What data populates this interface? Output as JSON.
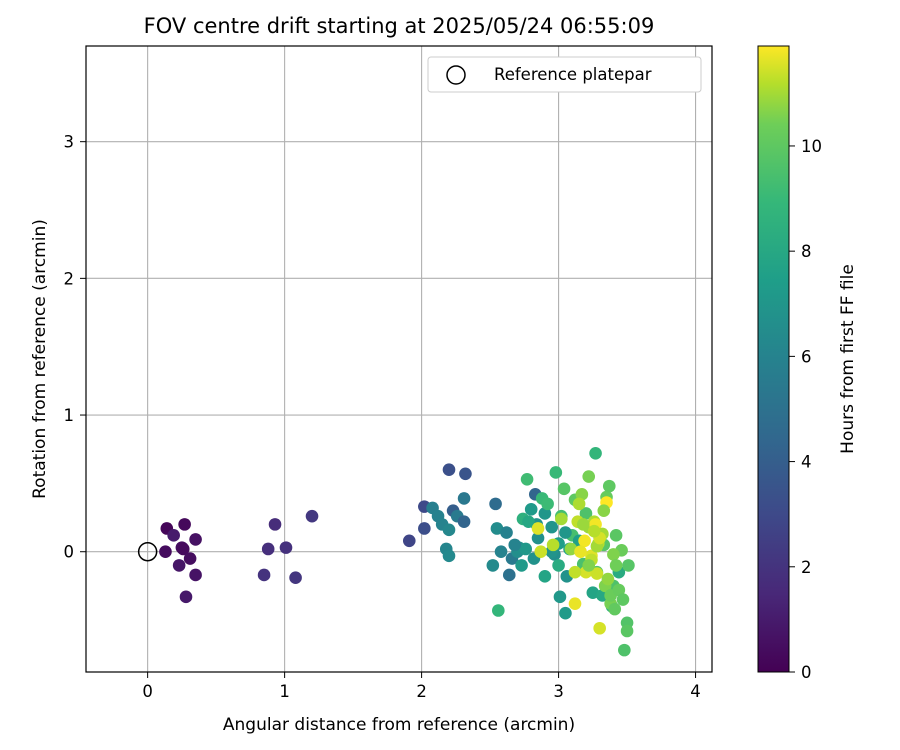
{
  "chart_data": {
    "type": "scatter",
    "title": "FOV centre drift starting at 2025/05/24 06:55:09",
    "xlabel": "Angular distance from reference (arcmin)",
    "ylabel": "Rotation from reference (arcmin)",
    "xlim": [
      -0.45,
      4.12
    ],
    "ylim": [
      -0.88,
      3.7
    ],
    "xticks": [
      0,
      1,
      2,
      3,
      4
    ],
    "yticks": [
      0,
      1,
      2,
      3
    ],
    "grid": true,
    "colormap": "viridis",
    "colorbar": {
      "label": "Hours from first FF file",
      "range": [
        0,
        11.9
      ],
      "ticks": [
        0,
        2,
        4,
        6,
        8,
        10
      ]
    },
    "legend": {
      "position": "top-right",
      "entries": [
        "Reference platepar"
      ]
    },
    "reference_point": {
      "x": 0,
      "y": 0
    },
    "series": [
      {
        "x": [
          0.14,
          0.27,
          0.13,
          0.25,
          0.35,
          0.35,
          0.23,
          0.28,
          0.19,
          0.26,
          0.31
        ],
        "y": [
          0.17,
          0.2,
          0.0,
          0.03,
          0.09,
          -0.17,
          -0.1,
          -0.33,
          0.12,
          0.02,
          -0.05
        ],
        "c": [
          0.2,
          0.3,
          0.4,
          0.5,
          0.6,
          0.7,
          0.8,
          0.9,
          1.0,
          0.35,
          0.45
        ]
      },
      {
        "x": [
          0.93,
          0.88,
          1.01,
          0.85,
          1.08,
          1.2,
          1.91
        ],
        "y": [
          0.2,
          0.02,
          0.03,
          -0.17,
          -0.19,
          0.26,
          0.08
        ],
        "c": [
          1.7,
          1.8,
          1.9,
          2.0,
          2.1,
          2.2,
          2.8
        ]
      },
      {
        "x": [
          2.02,
          2.02,
          2.08,
          2.12,
          2.15,
          2.2,
          2.23,
          2.26,
          2.31,
          2.32,
          2.2,
          2.18,
          2.2
        ],
        "y": [
          0.33,
          0.17,
          0.32,
          0.26,
          0.2,
          0.6,
          0.3,
          0.26,
          0.22,
          0.57,
          0.16,
          0.02,
          -0.03
        ],
        "c": [
          3.0,
          3.2,
          5.8,
          5.9,
          6.0,
          3.3,
          4.0,
          5.5,
          4.3,
          3.5,
          6.2,
          6.1,
          6.3
        ]
      },
      {
        "x": [
          2.31,
          2.54,
          2.52,
          2.55,
          2.58,
          2.64,
          2.66,
          2.7,
          2.71,
          2.74,
          2.77,
          2.8,
          2.83,
          2.84,
          2.88,
          2.9,
          2.92,
          2.95,
          2.97,
          2.98,
          3.0,
          3.01,
          3.02,
          3.04,
          3.05,
          3.06,
          3.08,
          3.1,
          3.12,
          3.15,
          3.18,
          3.2,
          3.22,
          3.25,
          3.27,
          3.28,
          3.3,
          3.32,
          3.33,
          3.35,
          3.37,
          3.39,
          3.4,
          3.42,
          3.44,
          3.46,
          3.48,
          3.5,
          3.51,
          3.05,
          3.0,
          2.95,
          2.9,
          2.85,
          2.82,
          2.78,
          2.76,
          2.73,
          2.68,
          2.62,
          2.56
        ],
        "y": [
          0.39,
          0.35,
          -0.1,
          0.17,
          0.0,
          -0.17,
          -0.05,
          0.0,
          0.03,
          0.24,
          0.53,
          0.31,
          0.42,
          0.2,
          0.39,
          0.28,
          0.35,
          0.18,
          -0.02,
          0.58,
          0.06,
          -0.33,
          0.26,
          0.46,
          -0.45,
          -0.18,
          0.02,
          0.12,
          0.38,
          0.08,
          -0.09,
          0.28,
          0.55,
          -0.3,
          0.72,
          -0.15,
          0.1,
          -0.32,
          0.05,
          0.4,
          0.48,
          -0.4,
          -0.25,
          0.12,
          -0.15,
          0.01,
          -0.72,
          -0.52,
          -0.1,
          0.14,
          -0.1,
          0.0,
          -0.18,
          0.1,
          -0.05,
          0.22,
          0.02,
          -0.1,
          0.05,
          0.14,
          -0.43
        ],
        "c": [
          5.4,
          4.7,
          6.4,
          6.5,
          6.0,
          5.0,
          5.5,
          6.6,
          6.7,
          8.5,
          9.2,
          7.2,
          4.3,
          6.8,
          9.0,
          7.0,
          9.1,
          6.9,
          6.6,
          9.0,
          7.4,
          7.1,
          9.3,
          9.8,
          7.3,
          6.8,
          7.6,
          9.4,
          10.0,
          7.5,
          9.5,
          9.6,
          10.5,
          7.8,
          8.8,
          9.7,
          7.0,
          8.0,
          9.8,
          10.2,
          10.0,
          8.4,
          9.6,
          9.9,
          8.2,
          10.3,
          9.6,
          9.7,
          9.8,
          7.0,
          8.2,
          6.9,
          7.8,
          6.7,
          6.8,
          8.0,
          7.1,
          7.2,
          6.0,
          5.9,
          8.8
        ]
      },
      {
        "x": [
          2.85,
          2.87,
          2.96,
          3.02,
          3.09,
          3.12,
          3.14,
          3.17,
          3.19,
          3.2,
          3.22,
          3.24,
          3.26,
          3.27,
          3.28,
          3.29,
          3.3,
          3.32,
          3.34,
          3.35,
          3.36,
          3.38,
          3.4,
          3.42,
          3.18,
          3.15,
          3.24,
          3.28,
          3.33,
          3.38,
          3.41,
          3.44,
          3.47,
          3.5,
          3.3,
          3.26,
          3.22,
          3.16,
          3.12
        ],
        "y": [
          0.17,
          0.0,
          0.05,
          0.24,
          0.02,
          -0.38,
          0.22,
          0.42,
          0.08,
          -0.15,
          0.18,
          -0.03,
          0.22,
          0.2,
          -0.16,
          0.06,
          -0.56,
          0.13,
          -0.25,
          0.36,
          -0.2,
          -0.38,
          -0.02,
          -0.1,
          0.2,
          0.35,
          -0.06,
          0.04,
          0.3,
          -0.32,
          -0.42,
          -0.28,
          -0.35,
          -0.58,
          0.1,
          0.15,
          -0.1,
          0.0,
          -0.15
        ],
        "c": [
          11.6,
          11.4,
          11.2,
          11.0,
          10.8,
          11.7,
          11.3,
          10.7,
          11.8,
          11.5,
          10.9,
          11.6,
          11.1,
          11.8,
          11.4,
          11.2,
          11.5,
          11.0,
          10.6,
          11.9,
          10.8,
          10.5,
          10.6,
          10.4,
          10.9,
          11.1,
          11.3,
          11.0,
          10.7,
          10.3,
          10.1,
          10.2,
          10.0,
          9.9,
          11.5,
          11.2,
          10.6,
          11.7,
          11.3
        ]
      }
    ]
  }
}
